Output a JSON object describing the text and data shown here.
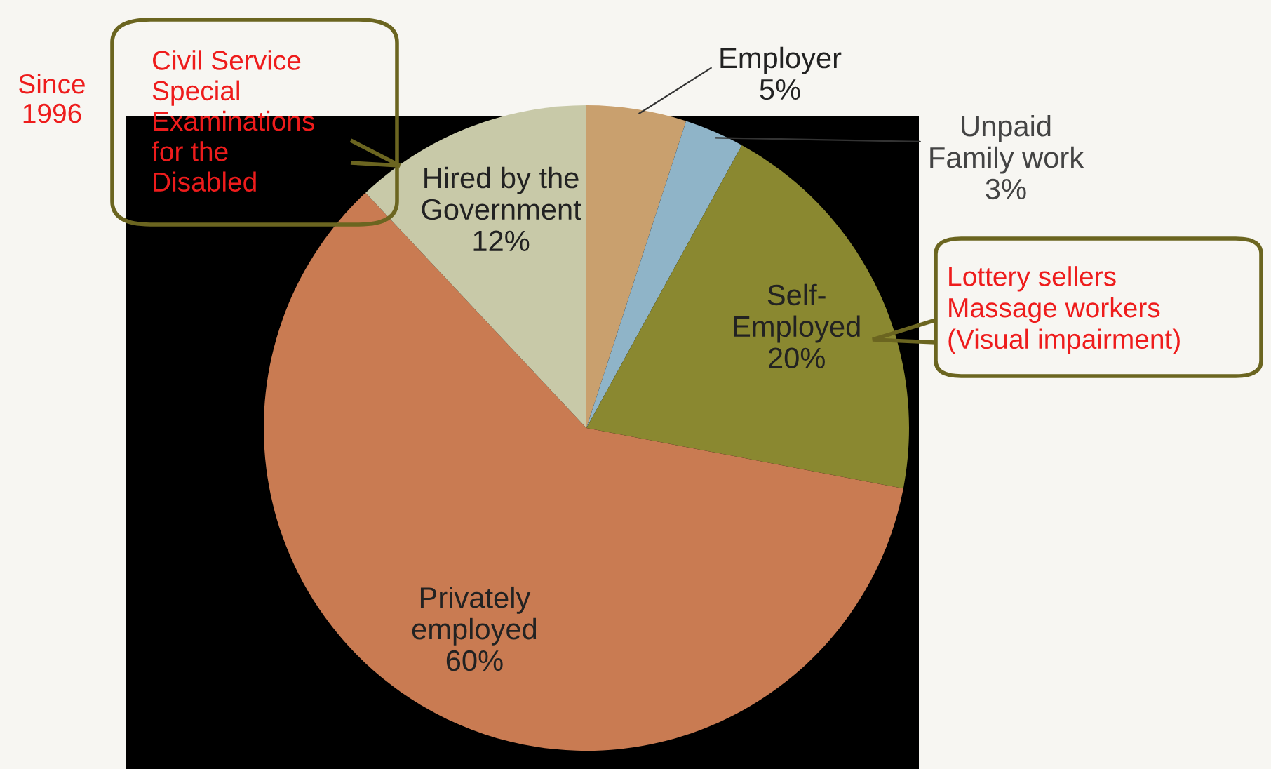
{
  "chart_data": {
    "type": "pie",
    "categories": [
      "Employer",
      "Unpaid\nFamily work",
      "Self-\nEmployed",
      "Privately\nemployed",
      "Hired by the\nGovernment"
    ],
    "values": [
      5,
      3,
      20,
      60,
      12
    ],
    "value_labels": [
      "5%",
      "3%",
      "20%",
      "60%",
      "12%"
    ],
    "colors": [
      "#c9a06e",
      "#8fb4c8",
      "#8a8830",
      "#c97b52",
      "#c8c9a8"
    ],
    "annotations": [
      "Since\n1996",
      "Civil Service\nSpecial\nExaminations\nfor the\nDisabled",
      "Lottery sellers\nMassage workers\n(Visual impairment)"
    ]
  }
}
